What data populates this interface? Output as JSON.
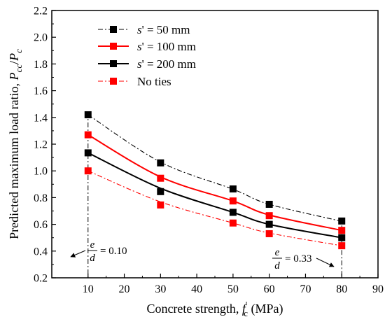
{
  "chart_data": {
    "type": "line",
    "xlabel": "Concrete strength, f'c (MPa)",
    "xlabel_parts": {
      "prefix": "Concrete strength, ",
      "symbol": "f",
      "sup": "'",
      "sub": "c",
      "suffix": " (MPa)"
    },
    "ylabel": "Predicted maximum load ratio, Pcc/Pc",
    "ylabel_parts": {
      "prefix": "Predicted maximum load ratio, ",
      "sym1": "P",
      "sub1": "cc",
      "slash": "/",
      "sym2": "P",
      "sub2": "c"
    },
    "xlim": [
      0,
      90
    ],
    "ylim": [
      0.2,
      2.2
    ],
    "x_ticks": [
      "10",
      "20",
      "30",
      "40",
      "50",
      "60",
      "70",
      "80",
      "90"
    ],
    "y_ticks": [
      "0.2",
      "0.4",
      "0.6",
      "0.8",
      "1.0",
      "1.2",
      "1.4",
      "1.6",
      "1.8",
      "2.0",
      "2.2"
    ],
    "legend_position": "top-left",
    "series": [
      {
        "name": "s' = 50 mm",
        "name_parts": {
          "sym": "s",
          "rest": "' = 50 mm"
        },
        "color": "#000000",
        "line_style": "dash-dot",
        "marker_color": "#000000",
        "x": [
          10,
          30,
          50,
          60,
          80
        ],
        "y": [
          1.42,
          1.06,
          0.865,
          0.75,
          0.625
        ],
        "curve_y": [
          1.42,
          1.066,
          0.863,
          0.75,
          0.623
        ]
      },
      {
        "name": "s' = 100 mm",
        "name_parts": {
          "sym": "s",
          "rest": "' = 100 mm"
        },
        "color": "#ff0000",
        "line_style": "solid",
        "marker_color": "#ff0000",
        "x": [
          10,
          30,
          50,
          60,
          80
        ],
        "y": [
          1.27,
          0.945,
          0.775,
          0.665,
          0.555
        ],
        "curve_y": [
          1.27,
          0.955,
          0.775,
          0.67,
          0.555
        ]
      },
      {
        "name": "s' = 200 mm",
        "name_parts": {
          "sym": "s",
          "rest": "' = 200 mm"
        },
        "color": "#000000",
        "line_style": "solid",
        "marker_color": "#000000",
        "x": [
          10,
          30,
          50,
          60,
          80
        ],
        "y": [
          1.135,
          0.845,
          0.69,
          0.6,
          0.5
        ],
        "curve_y": [
          1.135,
          0.87,
          0.69,
          0.6,
          0.5
        ]
      },
      {
        "name": "No ties",
        "name_parts": {
          "sym": "",
          "rest": "No ties"
        },
        "color": "#ff0000",
        "line_style": "dash-dot",
        "marker_color": "#ff0000",
        "x": [
          10,
          30,
          50,
          60,
          80
        ],
        "y": [
          1.0,
          0.745,
          0.61,
          0.53,
          0.44
        ],
        "curve_y": [
          1.0,
          0.768,
          0.61,
          0.535,
          0.44
        ]
      }
    ],
    "annotations": [
      {
        "numerator": "e",
        "denominator": "d",
        "value": "= 0.10",
        "at_x": 10,
        "y": 0.48
      },
      {
        "numerator": "e",
        "denominator": "d",
        "value": "= 0.33",
        "at_x": 80,
        "y": 0.33
      }
    ],
    "grid": false
  }
}
